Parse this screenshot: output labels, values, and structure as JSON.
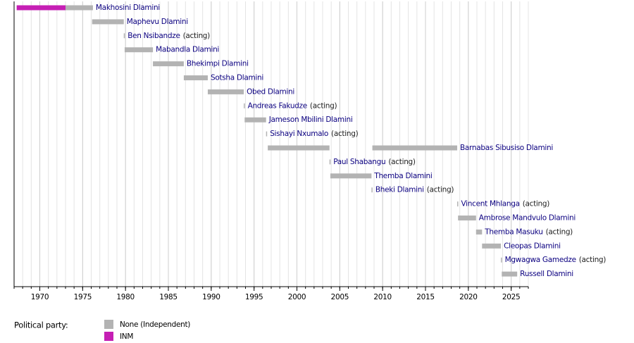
{
  "chart_data": {
    "type": "timeline",
    "xlim": [
      1967,
      2027
    ],
    "xticks": [
      1970,
      1975,
      1980,
      1985,
      1990,
      1995,
      2000,
      2005,
      2010,
      2015,
      2020,
      2025
    ],
    "minor_grid": true,
    "rows": [
      {
        "name": "Makhosini Dlamini",
        "terms": [
          {
            "start": 1967.3,
            "end": 1973.0,
            "color": "#c51fb4"
          },
          {
            "start": 1973.0,
            "end": 1976.2,
            "color": "#b3b3b3"
          }
        ]
      },
      {
        "name": "Maphevu Dlamini",
        "terms": [
          {
            "start": 1976.1,
            "end": 1979.8,
            "color": "#b3b3b3"
          }
        ]
      },
      {
        "name": "Ben Nsibandze",
        "note": "(acting)",
        "terms": [
          {
            "start": 1979.8,
            "end": 1979.9,
            "color": "#b3b3b3"
          }
        ]
      },
      {
        "name": "Mabandla Dlamini",
        "terms": [
          {
            "start": 1979.9,
            "end": 1983.2,
            "color": "#b3b3b3"
          }
        ]
      },
      {
        "name": "Bhekimpi Dlamini",
        "terms": [
          {
            "start": 1983.2,
            "end": 1986.8,
            "color": "#b3b3b3"
          }
        ]
      },
      {
        "name": "Sotsha Dlamini",
        "terms": [
          {
            "start": 1986.8,
            "end": 1989.6,
            "color": "#b3b3b3"
          }
        ]
      },
      {
        "name": "Obed Dlamini",
        "terms": [
          {
            "start": 1989.6,
            "end": 1993.8,
            "color": "#b3b3b3"
          }
        ]
      },
      {
        "name": "Andreas Fakudze",
        "note": "(acting)",
        "terms": [
          {
            "start": 1993.8,
            "end": 1993.9,
            "color": "#b3b3b3"
          }
        ]
      },
      {
        "name": "Jameson Mbilini Dlamini",
        "terms": [
          {
            "start": 1993.9,
            "end": 1996.4,
            "color": "#b3b3b3"
          }
        ]
      },
      {
        "name": "Sishayi Nxumalo",
        "note": "(acting)",
        "terms": [
          {
            "start": 1996.4,
            "end": 1996.5,
            "color": "#b3b3b3"
          }
        ]
      },
      {
        "name": "Barnabas Sibusiso Dlamini",
        "terms": [
          {
            "start": 1996.6,
            "end": 2003.8,
            "color": "#b3b3b3"
          },
          {
            "start": 2008.8,
            "end": 2018.7,
            "color": "#b3b3b3"
          }
        ]
      },
      {
        "name": "Paul Shabangu",
        "note": "(acting)",
        "terms": [
          {
            "start": 2003.8,
            "end": 2003.9,
            "color": "#b3b3b3"
          }
        ]
      },
      {
        "name": "Themba Dlamini",
        "terms": [
          {
            "start": 2003.9,
            "end": 2008.7,
            "color": "#b3b3b3"
          }
        ]
      },
      {
        "name": "Bheki Dlamini",
        "note": "(acting)",
        "terms": [
          {
            "start": 2008.7,
            "end": 2008.8,
            "color": "#b3b3b3"
          }
        ]
      },
      {
        "name": "Vincent Mhlanga",
        "note": "(acting)",
        "terms": [
          {
            "start": 2018.7,
            "end": 2018.8,
            "color": "#b3b3b3"
          }
        ]
      },
      {
        "name": "Ambrose Mandvulo Dlamini",
        "terms": [
          {
            "start": 2018.8,
            "end": 2020.9,
            "color": "#b3b3b3"
          }
        ]
      },
      {
        "name": "Themba Masuku",
        "note": "(acting)",
        "terms": [
          {
            "start": 2020.9,
            "end": 2021.6,
            "color": "#b3b3b3"
          }
        ]
      },
      {
        "name": "Cleopas Dlamini",
        "terms": [
          {
            "start": 2021.6,
            "end": 2023.8,
            "color": "#b3b3b3"
          }
        ]
      },
      {
        "name": "Mgwagwa Gamedze",
        "note": "(acting)",
        "terms": [
          {
            "start": 2023.8,
            "end": 2023.9,
            "color": "#b3b3b3"
          }
        ]
      },
      {
        "name": "Russell Dlamini",
        "terms": [
          {
            "start": 2023.9,
            "end": 2025.7,
            "color": "#b3b3b3"
          }
        ]
      }
    ],
    "legend_title": "Political party:",
    "legend": [
      {
        "name": "None (Independent)",
        "color": "#b3b3b3"
      },
      {
        "name": "INM",
        "color": "#c51fb4"
      }
    ]
  }
}
